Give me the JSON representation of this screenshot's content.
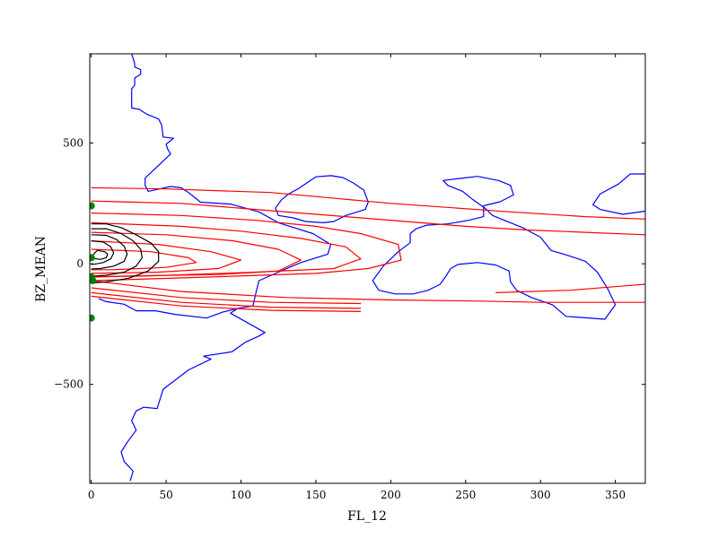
{
  "chart_data": {
    "type": "contour",
    "xlabel": "FL_12",
    "ylabel": "BZ_MEAN",
    "xlim": [
      -1,
      370
    ],
    "ylim": [
      -910,
      870
    ],
    "xticks": [
      {
        "value": 0,
        "label": "0"
      },
      {
        "value": 50,
        "label": "50"
      },
      {
        "value": 100,
        "label": "100"
      },
      {
        "value": 150,
        "label": "150"
      },
      {
        "value": 200,
        "label": "200"
      },
      {
        "value": 250,
        "label": "250"
      },
      {
        "value": 300,
        "label": "300"
      },
      {
        "value": 350,
        "label": "350"
      }
    ],
    "yticks": [
      {
        "value": 500,
        "label": "500"
      },
      {
        "value": 0,
        "label": "0"
      },
      {
        "value": -500,
        "label": "−500"
      }
    ],
    "colors": {
      "blue": "#0000ff",
      "red": "#ff0000",
      "black": "#000000",
      "green": "#008000"
    },
    "blue_contours": [
      [
        [
          27,
          870
        ],
        [
          29,
          830
        ],
        [
          29,
          815
        ],
        [
          33,
          805
        ],
        [
          33,
          785
        ],
        [
          29,
          770
        ],
        [
          29,
          740
        ],
        [
          27,
          725
        ],
        [
          27,
          645
        ],
        [
          32,
          640
        ],
        [
          37,
          620
        ],
        [
          45,
          600
        ],
        [
          47,
          575
        ],
        [
          48,
          525
        ],
        [
          55,
          520
        ],
        [
          50,
          495
        ],
        [
          51,
          475
        ],
        [
          53,
          455
        ],
        [
          42,
          390
        ],
        [
          36,
          355
        ],
        [
          36,
          325
        ],
        [
          38,
          300
        ],
        [
          53,
          320
        ],
        [
          60,
          315
        ],
        [
          65,
          295
        ],
        [
          70,
          270
        ],
        [
          73,
          255
        ],
        [
          93,
          247
        ],
        [
          112,
          215
        ],
        [
          125,
          170
        ],
        [
          148,
          125
        ],
        [
          160,
          80
        ],
        [
          158,
          40
        ],
        [
          140,
          5
        ],
        [
          125,
          -35
        ],
        [
          112,
          -70
        ],
        [
          110,
          -120
        ],
        [
          108,
          -175
        ],
        [
          98,
          -185
        ],
        [
          93,
          -205
        ],
        [
          116,
          -285
        ],
        [
          112,
          -300
        ],
        [
          103,
          -325
        ],
        [
          94,
          -365
        ],
        [
          75,
          -383
        ],
        [
          80,
          -395
        ],
        [
          65,
          -440
        ],
        [
          48,
          -520
        ],
        [
          44,
          -600
        ],
        [
          35,
          -595
        ],
        [
          30,
          -610
        ],
        [
          27,
          -650
        ],
        [
          30,
          -690
        ],
        [
          24,
          -740
        ],
        [
          20,
          -780
        ],
        [
          22,
          -820
        ],
        [
          28,
          -860
        ],
        [
          26,
          -900
        ]
      ],
      [
        [
          98,
          -185
        ],
        [
          88,
          -200
        ],
        [
          77,
          -225
        ],
        [
          56,
          -210
        ],
        [
          43,
          -195
        ],
        [
          30,
          -195
        ],
        [
          22,
          -168
        ],
        [
          10,
          -157
        ],
        [
          5,
          -145
        ]
      ],
      [
        [
          127,
          265
        ],
        [
          132,
          290
        ],
        [
          138,
          310
        ],
        [
          150,
          360
        ],
        [
          160,
          365
        ],
        [
          168,
          357
        ],
        [
          175,
          335
        ],
        [
          182,
          305
        ],
        [
          185,
          255
        ],
        [
          183,
          225
        ],
        [
          170,
          200
        ],
        [
          162,
          175
        ],
        [
          155,
          170
        ],
        [
          143,
          175
        ],
        [
          135,
          190
        ],
        [
          125,
          200
        ],
        [
          123,
          230
        ],
        [
          127,
          265
        ]
      ],
      [
        [
          248,
          355
        ],
        [
          258,
          362
        ],
        [
          272,
          345
        ],
        [
          280,
          325
        ],
        [
          282,
          285
        ],
        [
          273,
          257
        ],
        [
          262,
          240
        ],
        [
          262,
          195
        ],
        [
          252,
          180
        ],
        [
          238,
          165
        ],
        [
          224,
          160
        ],
        [
          217,
          145
        ],
        [
          213,
          125
        ],
        [
          213,
          87
        ],
        [
          205,
          50
        ],
        [
          200,
          20
        ],
        [
          195,
          -10
        ],
        [
          188,
          -70
        ],
        [
          192,
          -110
        ],
        [
          203,
          -125
        ],
        [
          215,
          -125
        ],
        [
          225,
          -110
        ],
        [
          233,
          -85
        ],
        [
          237,
          -50
        ],
        [
          240,
          -20
        ],
        [
          245,
          -3
        ],
        [
          258,
          5
        ],
        [
          270,
          -5
        ],
        [
          279,
          -30
        ],
        [
          280,
          -75
        ],
        [
          284,
          -110
        ],
        [
          294,
          -140
        ],
        [
          308,
          -170
        ],
        [
          317,
          -218
        ],
        [
          343,
          -230
        ],
        [
          350,
          -170
        ],
        [
          345,
          -105
        ],
        [
          338,
          -35
        ],
        [
          330,
          10
        ],
        [
          318,
          35
        ],
        [
          307,
          55
        ],
        [
          300,
          110
        ],
        [
          288,
          150
        ],
        [
          280,
          170
        ],
        [
          268,
          200
        ],
        [
          263,
          230
        ],
        [
          255,
          265
        ],
        [
          248,
          300
        ],
        [
          238,
          325
        ],
        [
          235,
          345
        ],
        [
          248,
          355
        ]
      ],
      [
        [
          360,
          372
        ],
        [
          370,
          372
        ],
        [
          370,
          218
        ],
        [
          355,
          205
        ],
        [
          340,
          225
        ],
        [
          335,
          245
        ],
        [
          340,
          290
        ],
        [
          352,
          330
        ],
        [
          360,
          372
        ]
      ]
    ],
    "red_contours": [
      [
        [
          0,
          315
        ],
        [
          50,
          310
        ],
        [
          120,
          295
        ],
        [
          200,
          250
        ],
        [
          280,
          215
        ],
        [
          330,
          195
        ],
        [
          370,
          185
        ]
      ],
      [
        [
          0,
          260
        ],
        [
          60,
          250
        ],
        [
          110,
          225
        ],
        [
          170,
          195
        ],
        [
          220,
          170
        ],
        [
          250,
          155
        ],
        [
          290,
          140
        ],
        [
          330,
          130
        ],
        [
          370,
          120
        ]
      ],
      [
        [
          0,
          210
        ],
        [
          60,
          200
        ],
        [
          110,
          180
        ],
        [
          150,
          155
        ],
        [
          180,
          125
        ],
        [
          205,
          80
        ],
        [
          207,
          15
        ],
        [
          185,
          -20
        ],
        [
          150,
          -40
        ],
        [
          80,
          -55
        ],
        [
          0,
          -70
        ]
      ],
      [
        [
          0,
          170
        ],
        [
          60,
          155
        ],
        [
          100,
          135
        ],
        [
          140,
          105
        ],
        [
          170,
          70
        ],
        [
          180,
          20
        ],
        [
          162,
          -20
        ],
        [
          110,
          -35
        ],
        [
          40,
          -50
        ],
        [
          0,
          -55
        ]
      ],
      [
        [
          0,
          130
        ],
        [
          50,
          120
        ],
        [
          95,
          95
        ],
        [
          125,
          60
        ],
        [
          140,
          15
        ],
        [
          125,
          -30
        ],
        [
          85,
          -45
        ],
        [
          30,
          -50
        ],
        [
          0,
          -55
        ]
      ],
      [
        [
          0,
          95
        ],
        [
          45,
          80
        ],
        [
          80,
          50
        ],
        [
          100,
          15
        ],
        [
          85,
          -20
        ],
        [
          45,
          -35
        ],
        [
          0,
          -40
        ]
      ],
      [
        [
          0,
          60
        ],
        [
          40,
          50
        ],
        [
          65,
          25
        ],
        [
          70,
          5
        ],
        [
          50,
          -15
        ],
        [
          15,
          -25
        ],
        [
          0,
          -25
        ]
      ],
      [
        [
          0,
          -70
        ],
        [
          60,
          -115
        ],
        [
          130,
          -140
        ],
        [
          200,
          -150
        ],
        [
          260,
          -155
        ],
        [
          300,
          -160
        ],
        [
          370,
          -160
        ]
      ],
      [
        [
          0,
          -100
        ],
        [
          60,
          -140
        ],
        [
          120,
          -160
        ],
        [
          180,
          -165
        ]
      ],
      [
        [
          0,
          -120
        ],
        [
          60,
          -160
        ],
        [
          120,
          -180
        ],
        [
          180,
          -185
        ]
      ],
      [
        [
          0,
          -135
        ],
        [
          60,
          -175
        ],
        [
          120,
          -193
        ],
        [
          180,
          -198
        ]
      ],
      [
        [
          270,
          -120
        ],
        [
          320,
          -110
        ],
        [
          360,
          -90
        ],
        [
          370,
          -85
        ]
      ]
    ],
    "black_contours": [
      [
        [
          0,
          165
        ],
        [
          10,
          165
        ],
        [
          20,
          150
        ],
        [
          30,
          120
        ],
        [
          40,
          85
        ],
        [
          45,
          50
        ],
        [
          45,
          10
        ],
        [
          38,
          -30
        ],
        [
          25,
          -60
        ],
        [
          10,
          -75
        ],
        [
          0,
          -80
        ]
      ],
      [
        [
          0,
          145
        ],
        [
          10,
          145
        ],
        [
          20,
          125
        ],
        [
          28,
          95
        ],
        [
          33,
          60
        ],
        [
          34,
          25
        ],
        [
          30,
          -10
        ],
        [
          22,
          -35
        ],
        [
          10,
          -48
        ],
        [
          0,
          -52
        ]
      ],
      [
        [
          0,
          120
        ],
        [
          10,
          118
        ],
        [
          17,
          100
        ],
        [
          22,
          72
        ],
        [
          24,
          40
        ],
        [
          22,
          10
        ],
        [
          15,
          -10
        ],
        [
          6,
          -20
        ],
        [
          0,
          -22
        ]
      ],
      [
        [
          0,
          95
        ],
        [
          8,
          90
        ],
        [
          13,
          70
        ],
        [
          15,
          45
        ],
        [
          13,
          20
        ],
        [
          8,
          5
        ],
        [
          2,
          -2
        ],
        [
          0,
          -3
        ]
      ],
      [
        [
          4,
          55
        ],
        [
          9,
          50
        ],
        [
          11,
          40
        ],
        [
          10,
          25
        ],
        [
          6,
          18
        ],
        [
          2,
          22
        ],
        [
          1,
          35
        ],
        [
          4,
          55
        ]
      ]
    ],
    "green_points": [
      {
        "x": 0,
        "y": 240
      },
      {
        "x": 0,
        "y": 25
      },
      {
        "x": 0,
        "y": -55
      },
      {
        "x": 1,
        "y": -70
      },
      {
        "x": 0,
        "y": -225
      }
    ]
  }
}
